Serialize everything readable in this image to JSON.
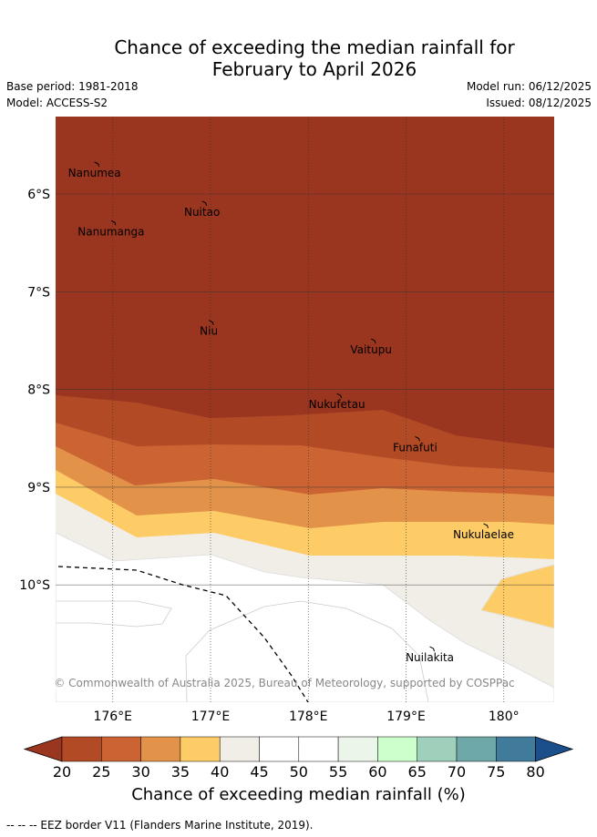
{
  "title_line1": "Chance of exceeding the median rainfall for",
  "title_line2": "February to April 2026",
  "base_period": "Base period: 1981-2018",
  "model": "Model: ACCESS-S2",
  "model_run": "Model run: 06/12/2025",
  "issued": "Issued: 08/12/2025",
  "copyright": "© Commonwealth of Australia 2025, Bureau of Meteorology, supported by COSPPac",
  "islands": [
    {
      "name": "Nanumea",
      "lon": 175.85,
      "lat": -5.71
    },
    {
      "name": "Nuitao",
      "lon": 176.95,
      "lat": -6.11
    },
    {
      "name": "Nanumanga",
      "lon": 176.02,
      "lat": -6.31
    },
    {
      "name": "Niu",
      "lon": 177.02,
      "lat": -7.33
    },
    {
      "name": "Vaitupu",
      "lon": 178.68,
      "lat": -7.52
    },
    {
      "name": "Nukufetau",
      "lon": 178.33,
      "lat": -8.08
    },
    {
      "name": "Funafuti",
      "lon": 179.13,
      "lat": -8.52
    },
    {
      "name": "Nukulaelae",
      "lon": 179.83,
      "lat": -9.41
    },
    {
      "name": "Nuilakita",
      "lon": 179.28,
      "lat": -10.67
    }
  ],
  "x_ticks": [
    {
      "lon": 176,
      "label": "176°E"
    },
    {
      "lon": 177,
      "label": "177°E"
    },
    {
      "lon": 178,
      "label": "178°E"
    },
    {
      "lon": 179,
      "label": "179°E"
    },
    {
      "lon": 180,
      "label": "180°"
    }
  ],
  "y_ticks": [
    {
      "lat": -6,
      "label": "6°S"
    },
    {
      "lat": -7,
      "label": "7°S"
    },
    {
      "lat": -8,
      "label": "8°S"
    },
    {
      "lat": -9,
      "label": "9°S"
    },
    {
      "lat": -10,
      "label": "10°S"
    }
  ],
  "colorbar": {
    "ticks": [
      "20",
      "25",
      "30",
      "35",
      "40",
      "45",
      "50",
      "55",
      "60",
      "65",
      "70",
      "75",
      "80"
    ],
    "colors": [
      "#b24a26",
      "#cb6332",
      "#e29349",
      "#fdcc66",
      "#f1ede7",
      "#ffffff",
      "#ffffff",
      "#ebf5e9",
      "#ccffcc",
      "#9fd0bc",
      "#6fa8a8",
      "#417b9b"
    ],
    "low_extend": "#9a3520",
    "high_extend": "#1a4f8b",
    "label": "Chance of exceeding median rainfall (%)"
  },
  "footer": "--  --  -- EEZ border V11 (Flanders Marine Institute, 2019)."
}
